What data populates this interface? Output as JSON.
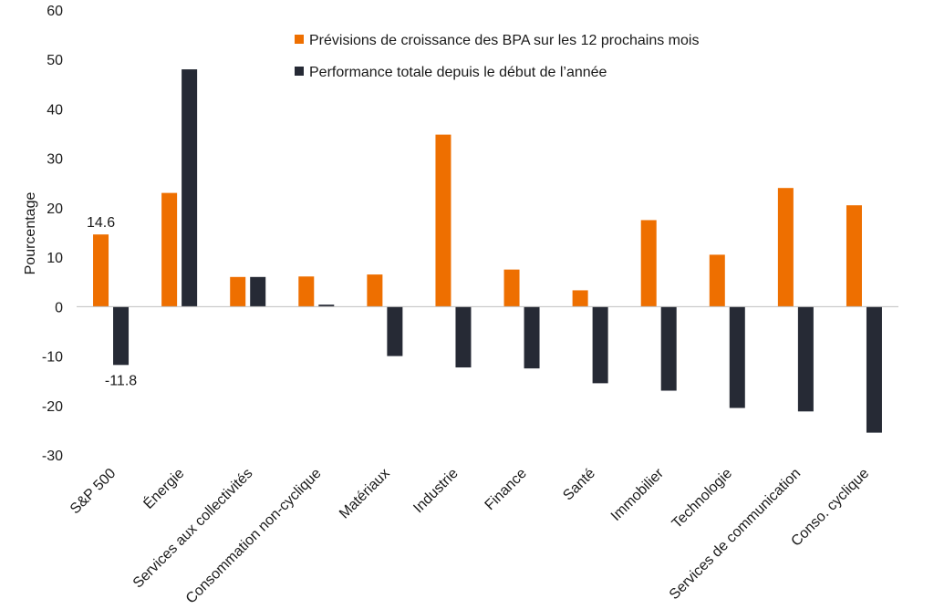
{
  "chart_data": {
    "type": "bar",
    "ylabel": "Pourcentage",
    "ylim": [
      -30,
      60
    ],
    "yticks": [
      60,
      50,
      40,
      30,
      20,
      10,
      0,
      -10,
      -20,
      -30
    ],
    "categories": [
      "S&P 500",
      "Énergie",
      "Services aux collectivités",
      "Consommation non-cyclique",
      "Matériaux",
      "Industrie",
      "Finance",
      "Santé",
      "Immobilier",
      "Technologie",
      "Services de communication",
      "Conso. cyclique"
    ],
    "series": [
      {
        "name": "Prévisions de croissance des BPA sur les 12 prochains mois",
        "color": "#ee6f00",
        "values": [
          14.6,
          23,
          6,
          6.1,
          6.5,
          34.8,
          7.5,
          3.3,
          17.5,
          10.5,
          24,
          20.5
        ]
      },
      {
        "name": "Performance totale depuis le début de l’année",
        "color": "#262a35",
        "values": [
          -11.8,
          48,
          6,
          0.4,
          -10,
          -12.3,
          -12.5,
          -15.5,
          -17,
          -20.5,
          -21.2,
          -25.5
        ]
      }
    ],
    "data_labels": [
      {
        "series": 0,
        "index": 0,
        "text": "14.6"
      },
      {
        "series": 1,
        "index": 0,
        "text": "-11.8"
      }
    ],
    "grid": false,
    "legend_position": "top"
  }
}
